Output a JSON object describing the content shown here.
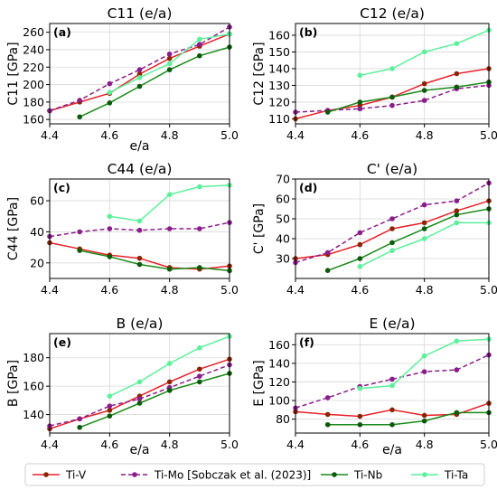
{
  "legend": {
    "placement": "bottom",
    "entries": [
      {
        "name": "Ti-V",
        "color": "#e8202a",
        "marker": "#8b2500",
        "dash": false
      },
      {
        "name": "Ti-Mo [Sobczak et al. (2023)]",
        "color": "#8b1c8b",
        "marker": "#8b1c8b",
        "dash": true
      },
      {
        "name": "Ti-Nb",
        "color": "#1a8a1a",
        "marker": "#0b5a0b",
        "dash": false
      },
      {
        "name": "Ti-Ta",
        "color": "#5cf09a",
        "marker": "#5cf09a",
        "dash": false
      }
    ]
  },
  "chart_data": [
    {
      "type": "line",
      "panel": "(a)",
      "title": "C11 (e/a)",
      "xlabel": "e/a",
      "ylabel": "C11 [GPa]",
      "xlim": [
        4.4,
        5.0
      ],
      "ylim": [
        155,
        270
      ],
      "xticks": [
        "4.4",
        "4.6",
        "4.8",
        "5.0"
      ],
      "yticks": [
        "160",
        "180",
        "200",
        "220",
        "240",
        "260"
      ],
      "grid": true,
      "series": [
        {
          "name": "Ti-V",
          "x": [
            4.4,
            4.5,
            4.6,
            4.7,
            4.8,
            4.9,
            5.0
          ],
          "y": [
            170,
            180,
            190,
            212,
            230,
            244,
            258
          ]
        },
        {
          "name": "Ti-Mo [Sobczak et al. (2023)]",
          "x": [
            4.4,
            4.5,
            4.6,
            4.7,
            4.8,
            4.9,
            5.0
          ],
          "y": [
            170,
            182,
            201,
            217,
            235,
            246,
            266
          ]
        },
        {
          "name": "Ti-Nb",
          "x": [
            4.5,
            4.6,
            4.7,
            4.8,
            4.9,
            5.0
          ],
          "y": [
            163,
            179,
            198,
            217,
            233,
            243
          ]
        },
        {
          "name": "Ti-Ta",
          "x": [
            4.6,
            4.7,
            4.8,
            4.9,
            5.0
          ],
          "y": [
            191,
            208,
            224,
            252,
            258
          ]
        }
      ]
    },
    {
      "type": "line",
      "panel": "(b)",
      "title": "C12 (e/a)",
      "xlabel": "",
      "ylabel": "C12 [GPa]",
      "xlim": [
        4.4,
        5.0
      ],
      "ylim": [
        107,
        167
      ],
      "xticks": [
        "4.4",
        "4.6",
        "4.8",
        "5.0"
      ],
      "yticks": [
        "110",
        "120",
        "130",
        "140",
        "150",
        "160"
      ],
      "grid": true,
      "series": [
        {
          "name": "Ti-V",
          "x": [
            4.4,
            4.5,
            4.6,
            4.7,
            4.8,
            4.9,
            5.0
          ],
          "y": [
            110,
            115,
            118,
            123,
            131,
            137,
            140
          ]
        },
        {
          "name": "Ti-Mo [Sobczak et al. (2023)]",
          "x": [
            4.4,
            4.5,
            4.6,
            4.7,
            4.8,
            4.9,
            5.0
          ],
          "y": [
            114,
            115,
            116,
            118,
            121,
            128,
            130
          ]
        },
        {
          "name": "Ti-Nb",
          "x": [
            4.5,
            4.6,
            4.7,
            4.8,
            4.9,
            5.0
          ],
          "y": [
            114,
            120,
            123,
            127,
            129,
            132
          ]
        },
        {
          "name": "Ti-Ta",
          "x": [
            4.6,
            4.7,
            4.8,
            4.9,
            5.0
          ],
          "y": [
            136,
            140,
            150,
            155,
            163
          ]
        }
      ]
    },
    {
      "type": "line",
      "panel": "(c)",
      "title": "C44 (e/a)",
      "xlabel": "",
      "ylabel": "C44 [GPa]",
      "xlim": [
        4.4,
        5.0
      ],
      "ylim": [
        10,
        74
      ],
      "xticks": [
        "4.4",
        "4.6",
        "4.8",
        "5.0"
      ],
      "yticks": [
        "20",
        "40",
        "60"
      ],
      "grid": true,
      "series": [
        {
          "name": "Ti-V",
          "x": [
            4.4,
            4.5,
            4.6,
            4.7,
            4.8,
            4.9,
            5.0
          ],
          "y": [
            33,
            29,
            25,
            23,
            17,
            16,
            18
          ]
        },
        {
          "name": "Ti-Mo [Sobczak et al. (2023)]",
          "x": [
            4.4,
            4.5,
            4.6,
            4.7,
            4.8,
            4.9,
            5.0
          ],
          "y": [
            37,
            40,
            42,
            41,
            42,
            42,
            46
          ]
        },
        {
          "name": "Ti-Nb",
          "x": [
            4.5,
            4.6,
            4.7,
            4.8,
            4.9,
            5.0
          ],
          "y": [
            28,
            24,
            19,
            16,
            17,
            15
          ]
        },
        {
          "name": "Ti-Ta",
          "x": [
            4.6,
            4.7,
            4.8,
            4.9,
            5.0
          ],
          "y": [
            50,
            47,
            64,
            69,
            70
          ]
        }
      ]
    },
    {
      "type": "line",
      "panel": "(d)",
      "title": "C' (e/a)",
      "xlabel": "",
      "ylabel": "C' [GPa]",
      "xlim": [
        4.4,
        5.0
      ],
      "ylim": [
        20,
        70
      ],
      "xticks": [
        "4.4",
        "4.6",
        "4.8",
        "5.0"
      ],
      "yticks": [
        "30",
        "40",
        "50",
        "60",
        "70"
      ],
      "grid": true,
      "series": [
        {
          "name": "Ti-V",
          "x": [
            4.4,
            4.5,
            4.6,
            4.7,
            4.8,
            4.9,
            5.0
          ],
          "y": [
            30,
            32,
            37,
            45,
            48,
            54,
            59
          ]
        },
        {
          "name": "Ti-Mo [Sobczak et al. (2023)]",
          "x": [
            4.4,
            4.5,
            4.6,
            4.7,
            4.8,
            4.9,
            5.0
          ],
          "y": [
            28,
            33,
            43,
            50,
            57,
            59,
            68
          ]
        },
        {
          "name": "Ti-Nb",
          "x": [
            4.5,
            4.6,
            4.7,
            4.8,
            4.9,
            5.0
          ],
          "y": [
            24,
            30,
            38,
            45,
            52,
            55
          ]
        },
        {
          "name": "Ti-Ta",
          "x": [
            4.6,
            4.7,
            4.8,
            4.9,
            5.0
          ],
          "y": [
            26,
            34,
            40,
            48,
            48
          ]
        }
      ]
    },
    {
      "type": "line",
      "panel": "(e)",
      "title": "B (e/a)",
      "xlabel": "e/a",
      "ylabel": "B [GPa]",
      "xlim": [
        4.4,
        5.0
      ],
      "ylim": [
        127,
        197
      ],
      "xticks": [
        "4.4",
        "4.6",
        "4.8",
        "5.0"
      ],
      "yticks": [
        "140",
        "160",
        "180"
      ],
      "grid": true,
      "series": [
        {
          "name": "Ti-V",
          "x": [
            4.4,
            4.5,
            4.6,
            4.7,
            4.8,
            4.9,
            5.0
          ],
          "y": [
            130,
            137,
            143,
            153,
            163,
            172,
            179
          ]
        },
        {
          "name": "Ti-Mo [Sobczak et al. (2023)]",
          "x": [
            4.4,
            4.5,
            4.6,
            4.7,
            4.8,
            4.9,
            5.0
          ],
          "y": [
            132,
            137,
            146,
            151,
            159,
            167,
            175
          ]
        },
        {
          "name": "Ti-Nb",
          "x": [
            4.5,
            4.6,
            4.7,
            4.8,
            4.9,
            5.0
          ],
          "y": [
            131,
            139,
            148,
            157,
            163,
            169
          ]
        },
        {
          "name": "Ti-Ta",
          "x": [
            4.6,
            4.7,
            4.8,
            4.9,
            5.0
          ],
          "y": [
            153,
            163,
            176,
            187,
            195
          ]
        }
      ]
    },
    {
      "type": "line",
      "panel": "(f)",
      "title": "E (e/a)",
      "xlabel": "e/a",
      "ylabel": "E [GPa]",
      "xlim": [
        4.4,
        5.0
      ],
      "ylim": [
        65,
        172
      ],
      "xticks": [
        "4.4",
        "4.6",
        "4.8",
        "5.0"
      ],
      "yticks": [
        "80",
        "100",
        "120",
        "140",
        "160"
      ],
      "grid": true,
      "series": [
        {
          "name": "Ti-V",
          "x": [
            4.4,
            4.5,
            4.6,
            4.7,
            4.8,
            4.9,
            5.0
          ],
          "y": [
            88,
            85,
            83,
            90,
            84,
            85,
            97
          ]
        },
        {
          "name": "Ti-Mo [Sobczak et al. (2023)]",
          "x": [
            4.4,
            4.5,
            4.6,
            4.7,
            4.8,
            4.9,
            5.0
          ],
          "y": [
            92,
            103,
            115,
            123,
            131,
            133,
            149
          ]
        },
        {
          "name": "Ti-Nb",
          "x": [
            4.5,
            4.6,
            4.7,
            4.8,
            4.9,
            5.0
          ],
          "y": [
            74,
            74,
            74,
            78,
            87,
            87
          ]
        },
        {
          "name": "Ti-Ta",
          "x": [
            4.6,
            4.7,
            4.8,
            4.9,
            5.0
          ],
          "y": [
            113,
            116,
            148,
            164,
            166
          ]
        }
      ]
    }
  ]
}
